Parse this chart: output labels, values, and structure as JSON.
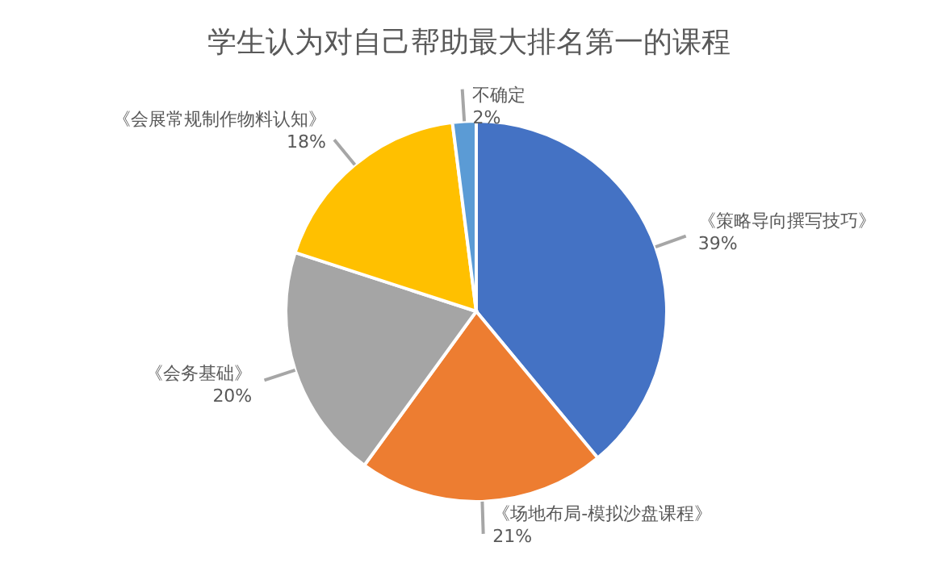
{
  "chart_data": {
    "type": "pie",
    "title": "学生认为对自己帮助最大排名第一的课程",
    "categories": [
      "《策略导向撰写技巧》",
      "《场地布局-模拟沙盘课程》",
      "《会务基础》",
      "《会展常规制作物料认知》",
      "不确定"
    ],
    "values": [
      39,
      21,
      20,
      18,
      2
    ],
    "value_labels": [
      "39%",
      "21%",
      "20%",
      "18%",
      "2%"
    ],
    "colors": [
      "#4472c4",
      "#ed7d31",
      "#a5a5a5",
      "#ffc000",
      "#5b9bd5"
    ],
    "legend": false
  }
}
